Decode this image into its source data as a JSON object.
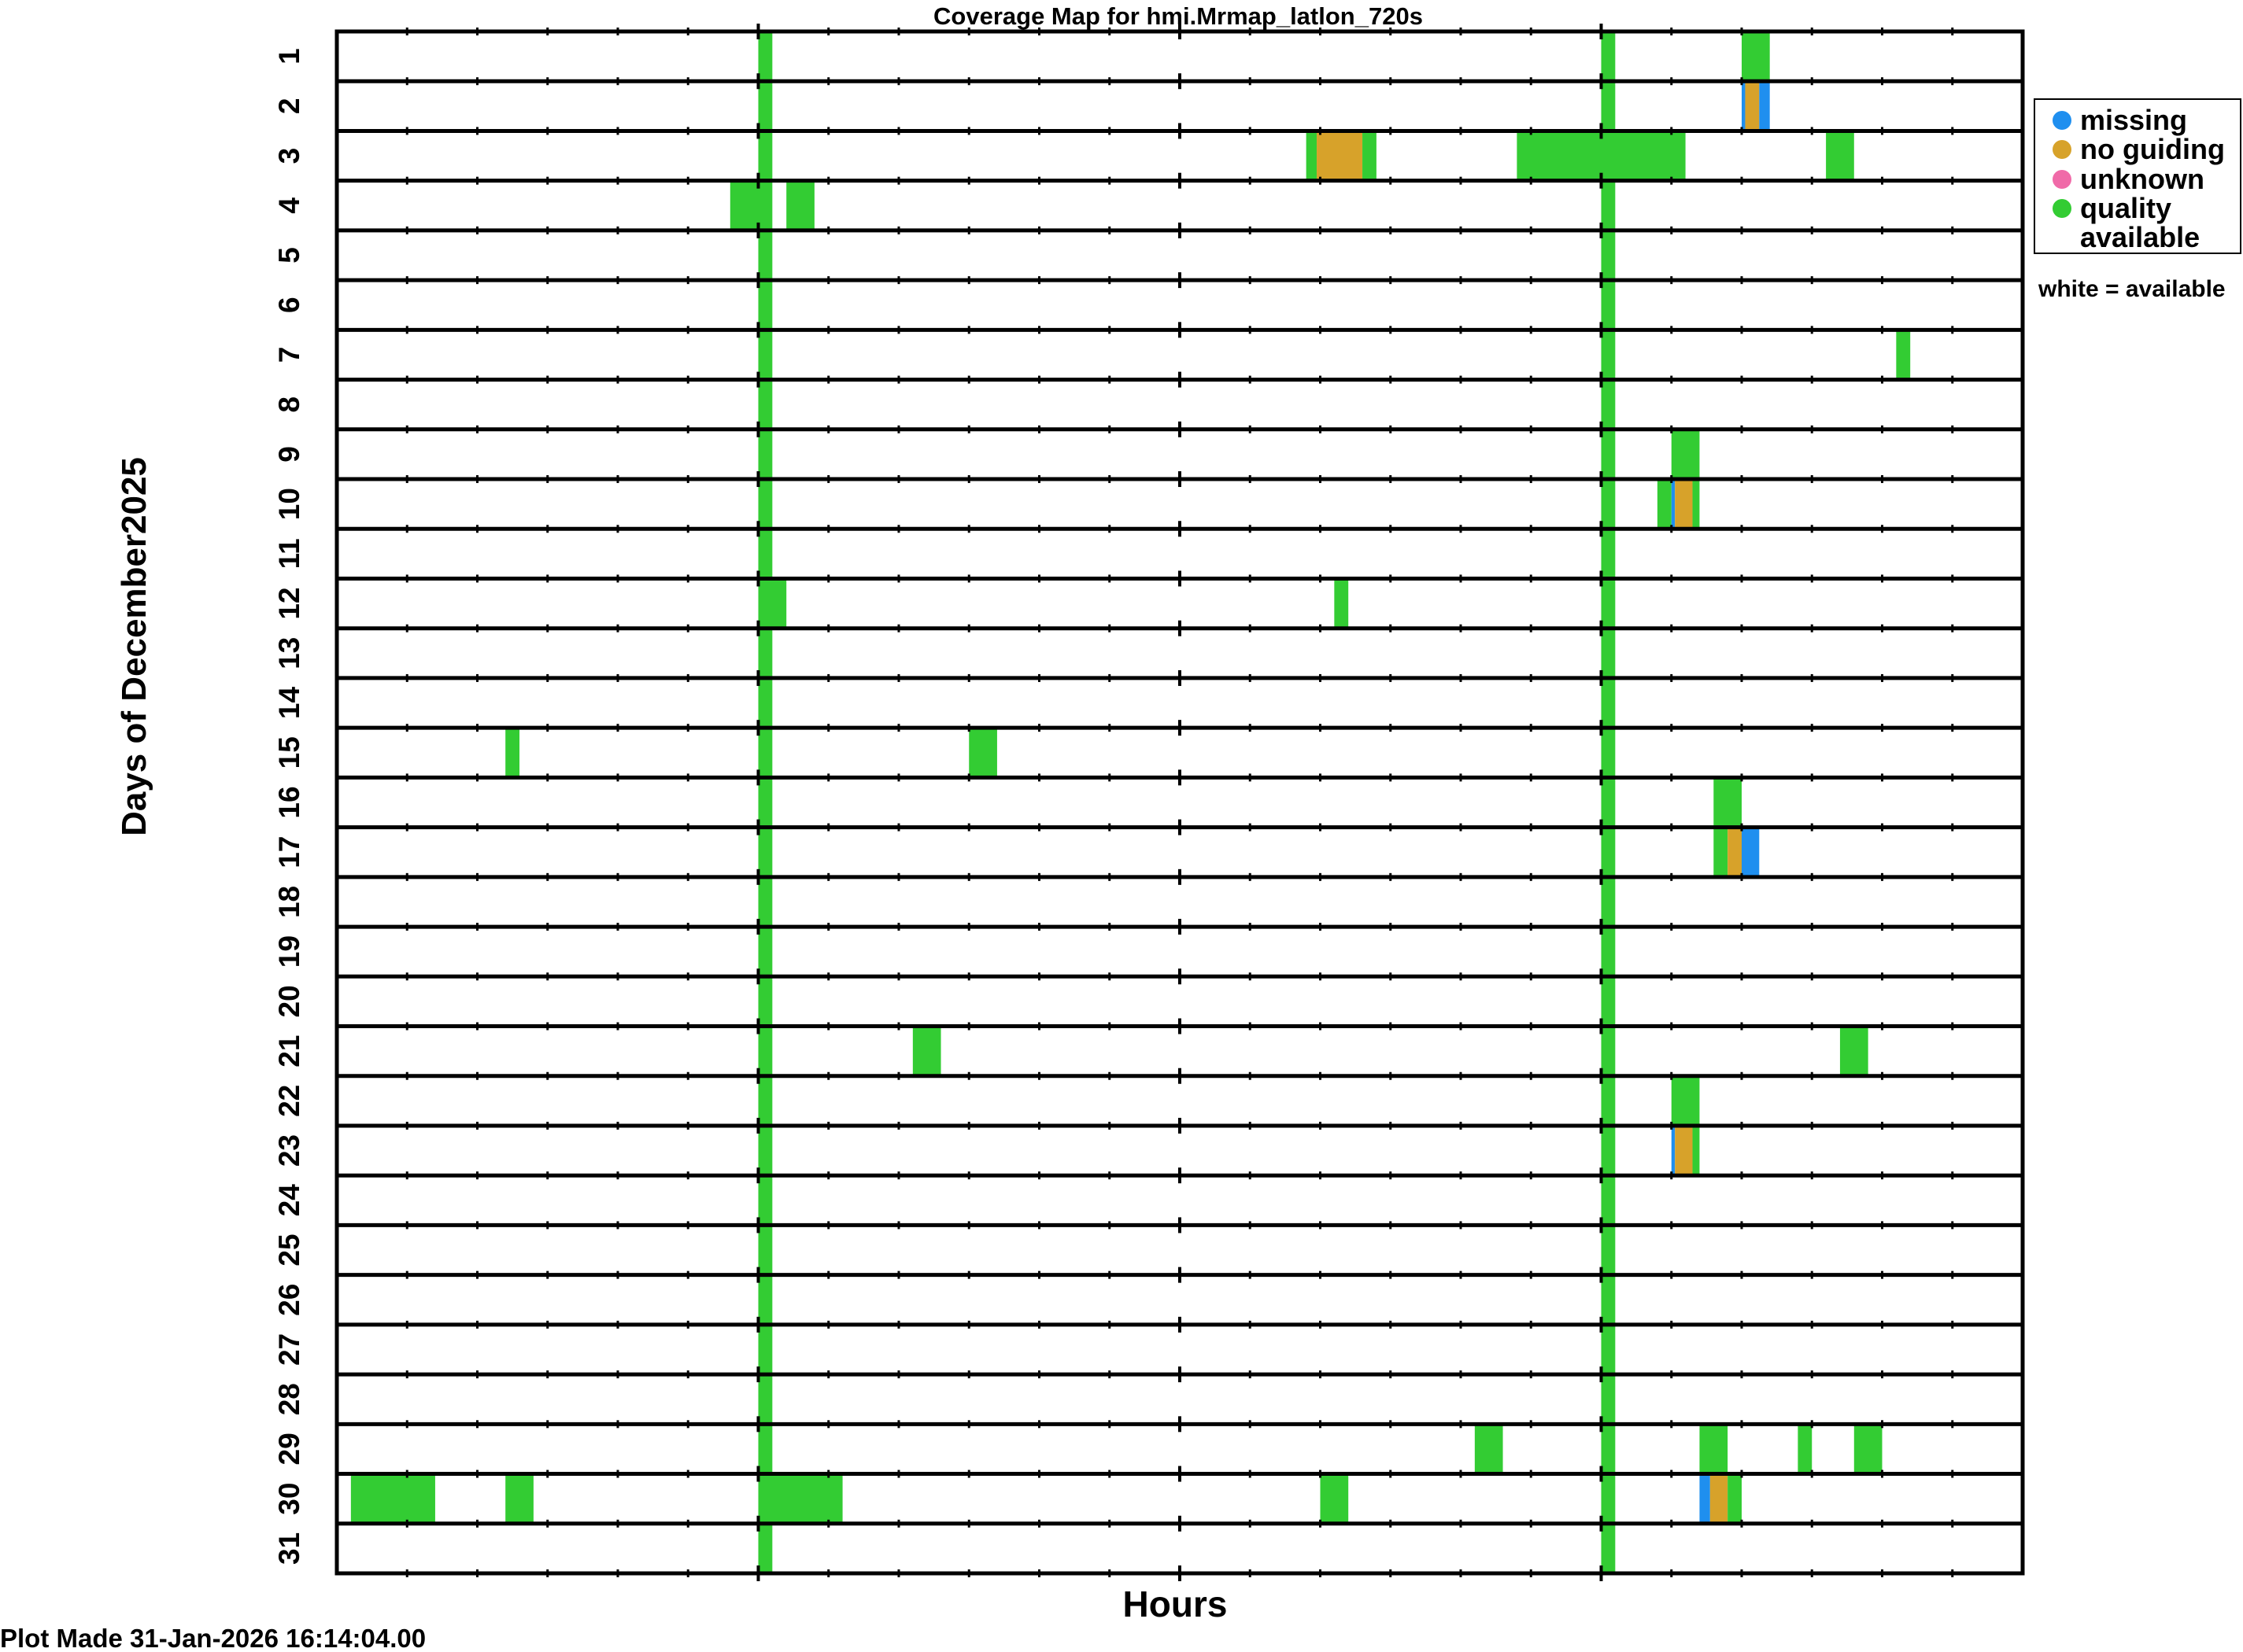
{
  "chart_data": {
    "type": "heatmap",
    "title": "Coverage Map for hmi.Mrmap_latlon_720s",
    "xlabel": "Hours",
    "ylabel": "Days of December2025",
    "footer": "Plot Made 31-Jan-2026 16:14:04.00",
    "xlim": [
      0,
      24
    ],
    "days": [
      1,
      2,
      3,
      4,
      5,
      6,
      7,
      8,
      9,
      10,
      11,
      12,
      13,
      14,
      15,
      16,
      17,
      18,
      19,
      20,
      21,
      22,
      23,
      24,
      25,
      26,
      27,
      28,
      29,
      30,
      31
    ],
    "colors": {
      "missing": "#1f8fef",
      "no_guiding": "#d7a22a",
      "unknown": "#f06aa8",
      "quality": "#33cc33"
    },
    "legend": {
      "placement": "right",
      "items": [
        {
          "key": "missing",
          "label": "missing"
        },
        {
          "key": "no_guiding",
          "label": "no guiding"
        },
        {
          "key": "unknown",
          "label": "unknown"
        },
        {
          "key": "quality",
          "label": "quality",
          "label2": "available"
        }
      ],
      "note": "white = available"
    },
    "status_blocks": [
      {
        "day": 1,
        "start": 6.0,
        "end": 6.2,
        "status": "quality"
      },
      {
        "day": 1,
        "start": 18.0,
        "end": 18.2,
        "status": "quality"
      },
      {
        "day": 1,
        "start": 20.0,
        "end": 20.4,
        "status": "quality"
      },
      {
        "day": 2,
        "start": 6.0,
        "end": 6.2,
        "status": "quality"
      },
      {
        "day": 2,
        "start": 18.0,
        "end": 18.2,
        "status": "quality"
      },
      {
        "day": 2,
        "start": 20.0,
        "end": 20.05,
        "status": "missing"
      },
      {
        "day": 2,
        "start": 20.05,
        "end": 20.25,
        "status": "no_guiding"
      },
      {
        "day": 2,
        "start": 20.25,
        "end": 20.4,
        "status": "missing"
      },
      {
        "day": 3,
        "start": 6.0,
        "end": 6.2,
        "status": "quality"
      },
      {
        "day": 3,
        "start": 13.8,
        "end": 13.95,
        "status": "quality"
      },
      {
        "day": 3,
        "start": 13.95,
        "end": 14.6,
        "status": "no_guiding"
      },
      {
        "day": 3,
        "start": 14.6,
        "end": 14.8,
        "status": "quality"
      },
      {
        "day": 3,
        "start": 16.8,
        "end": 19.2,
        "status": "quality"
      },
      {
        "day": 3,
        "start": 21.2,
        "end": 21.6,
        "status": "quality"
      },
      {
        "day": 4,
        "start": 5.6,
        "end": 6.2,
        "status": "quality"
      },
      {
        "day": 4,
        "start": 6.4,
        "end": 6.8,
        "status": "quality"
      },
      {
        "day": 4,
        "start": 18.0,
        "end": 18.2,
        "status": "quality"
      },
      {
        "day": 5,
        "start": 6.0,
        "end": 6.2,
        "status": "quality"
      },
      {
        "day": 5,
        "start": 18.0,
        "end": 18.2,
        "status": "quality"
      },
      {
        "day": 6,
        "start": 6.0,
        "end": 6.2,
        "status": "quality"
      },
      {
        "day": 6,
        "start": 18.0,
        "end": 18.2,
        "status": "quality"
      },
      {
        "day": 7,
        "start": 6.0,
        "end": 6.2,
        "status": "quality"
      },
      {
        "day": 7,
        "start": 18.0,
        "end": 18.2,
        "status": "quality"
      },
      {
        "day": 7,
        "start": 22.2,
        "end": 22.4,
        "status": "quality"
      },
      {
        "day": 8,
        "start": 6.0,
        "end": 6.2,
        "status": "quality"
      },
      {
        "day": 8,
        "start": 18.0,
        "end": 18.2,
        "status": "quality"
      },
      {
        "day": 9,
        "start": 6.0,
        "end": 6.2,
        "status": "quality"
      },
      {
        "day": 9,
        "start": 18.0,
        "end": 18.2,
        "status": "quality"
      },
      {
        "day": 9,
        "start": 19.0,
        "end": 19.4,
        "status": "quality"
      },
      {
        "day": 10,
        "start": 6.0,
        "end": 6.2,
        "status": "quality"
      },
      {
        "day": 10,
        "start": 18.0,
        "end": 18.2,
        "status": "quality"
      },
      {
        "day": 10,
        "start": 18.8,
        "end": 19.0,
        "status": "quality"
      },
      {
        "day": 10,
        "start": 19.0,
        "end": 19.05,
        "status": "missing"
      },
      {
        "day": 10,
        "start": 19.05,
        "end": 19.3,
        "status": "no_guiding"
      },
      {
        "day": 10,
        "start": 19.3,
        "end": 19.4,
        "status": "quality"
      },
      {
        "day": 11,
        "start": 6.0,
        "end": 6.2,
        "status": "quality"
      },
      {
        "day": 11,
        "start": 18.0,
        "end": 18.2,
        "status": "quality"
      },
      {
        "day": 12,
        "start": 6.0,
        "end": 6.4,
        "status": "quality"
      },
      {
        "day": 12,
        "start": 14.2,
        "end": 14.4,
        "status": "quality"
      },
      {
        "day": 12,
        "start": 18.0,
        "end": 18.2,
        "status": "quality"
      },
      {
        "day": 13,
        "start": 6.0,
        "end": 6.2,
        "status": "quality"
      },
      {
        "day": 13,
        "start": 18.0,
        "end": 18.2,
        "status": "quality"
      },
      {
        "day": 14,
        "start": 6.0,
        "end": 6.2,
        "status": "quality"
      },
      {
        "day": 14,
        "start": 18.0,
        "end": 18.2,
        "status": "quality"
      },
      {
        "day": 15,
        "start": 2.4,
        "end": 2.6,
        "status": "quality"
      },
      {
        "day": 15,
        "start": 6.0,
        "end": 6.2,
        "status": "quality"
      },
      {
        "day": 15,
        "start": 9.0,
        "end": 9.4,
        "status": "quality"
      },
      {
        "day": 15,
        "start": 18.0,
        "end": 18.2,
        "status": "quality"
      },
      {
        "day": 16,
        "start": 6.0,
        "end": 6.2,
        "status": "quality"
      },
      {
        "day": 16,
        "start": 18.0,
        "end": 18.2,
        "status": "quality"
      },
      {
        "day": 16,
        "start": 19.6,
        "end": 20.0,
        "status": "quality"
      },
      {
        "day": 17,
        "start": 6.0,
        "end": 6.2,
        "status": "quality"
      },
      {
        "day": 17,
        "start": 18.0,
        "end": 18.2,
        "status": "quality"
      },
      {
        "day": 17,
        "start": 19.6,
        "end": 19.8,
        "status": "quality"
      },
      {
        "day": 17,
        "start": 19.8,
        "end": 20.0,
        "status": "no_guiding"
      },
      {
        "day": 17,
        "start": 20.0,
        "end": 20.25,
        "status": "missing"
      },
      {
        "day": 18,
        "start": 6.0,
        "end": 6.2,
        "status": "quality"
      },
      {
        "day": 18,
        "start": 18.0,
        "end": 18.2,
        "status": "quality"
      },
      {
        "day": 19,
        "start": 6.0,
        "end": 6.2,
        "status": "quality"
      },
      {
        "day": 19,
        "start": 18.0,
        "end": 18.2,
        "status": "quality"
      },
      {
        "day": 20,
        "start": 6.0,
        "end": 6.2,
        "status": "quality"
      },
      {
        "day": 20,
        "start": 18.0,
        "end": 18.2,
        "status": "quality"
      },
      {
        "day": 21,
        "start": 6.0,
        "end": 6.2,
        "status": "quality"
      },
      {
        "day": 21,
        "start": 8.2,
        "end": 8.6,
        "status": "quality"
      },
      {
        "day": 21,
        "start": 18.0,
        "end": 18.2,
        "status": "quality"
      },
      {
        "day": 21,
        "start": 21.4,
        "end": 21.8,
        "status": "quality"
      },
      {
        "day": 22,
        "start": 6.0,
        "end": 6.2,
        "status": "quality"
      },
      {
        "day": 22,
        "start": 18.0,
        "end": 18.2,
        "status": "quality"
      },
      {
        "day": 22,
        "start": 19.0,
        "end": 19.4,
        "status": "quality"
      },
      {
        "day": 23,
        "start": 6.0,
        "end": 6.2,
        "status": "quality"
      },
      {
        "day": 23,
        "start": 18.0,
        "end": 18.2,
        "status": "quality"
      },
      {
        "day": 23,
        "start": 19.0,
        "end": 19.05,
        "status": "missing"
      },
      {
        "day": 23,
        "start": 19.05,
        "end": 19.3,
        "status": "no_guiding"
      },
      {
        "day": 23,
        "start": 19.3,
        "end": 19.4,
        "status": "quality"
      },
      {
        "day": 24,
        "start": 6.0,
        "end": 6.2,
        "status": "quality"
      },
      {
        "day": 24,
        "start": 18.0,
        "end": 18.2,
        "status": "quality"
      },
      {
        "day": 25,
        "start": 6.0,
        "end": 6.2,
        "status": "quality"
      },
      {
        "day": 25,
        "start": 18.0,
        "end": 18.2,
        "status": "quality"
      },
      {
        "day": 26,
        "start": 6.0,
        "end": 6.2,
        "status": "quality"
      },
      {
        "day": 26,
        "start": 18.0,
        "end": 18.2,
        "status": "quality"
      },
      {
        "day": 27,
        "start": 6.0,
        "end": 6.2,
        "status": "quality"
      },
      {
        "day": 27,
        "start": 18.0,
        "end": 18.2,
        "status": "quality"
      },
      {
        "day": 28,
        "start": 6.0,
        "end": 6.2,
        "status": "quality"
      },
      {
        "day": 28,
        "start": 18.0,
        "end": 18.2,
        "status": "quality"
      },
      {
        "day": 29,
        "start": 6.0,
        "end": 6.2,
        "status": "quality"
      },
      {
        "day": 29,
        "start": 16.2,
        "end": 16.6,
        "status": "quality"
      },
      {
        "day": 29,
        "start": 18.0,
        "end": 18.2,
        "status": "quality"
      },
      {
        "day": 29,
        "start": 19.4,
        "end": 19.8,
        "status": "quality"
      },
      {
        "day": 29,
        "start": 20.8,
        "end": 21.0,
        "status": "quality"
      },
      {
        "day": 29,
        "start": 21.6,
        "end": 22.0,
        "status": "quality"
      },
      {
        "day": 30,
        "start": 0.2,
        "end": 1.4,
        "status": "quality"
      },
      {
        "day": 30,
        "start": 2.4,
        "end": 2.8,
        "status": "quality"
      },
      {
        "day": 30,
        "start": 6.0,
        "end": 7.2,
        "status": "quality"
      },
      {
        "day": 30,
        "start": 14.0,
        "end": 14.4,
        "status": "quality"
      },
      {
        "day": 30,
        "start": 18.0,
        "end": 18.2,
        "status": "quality"
      },
      {
        "day": 30,
        "start": 19.4,
        "end": 19.55,
        "status": "missing"
      },
      {
        "day": 30,
        "start": 19.55,
        "end": 19.8,
        "status": "no_guiding"
      },
      {
        "day": 30,
        "start": 19.8,
        "end": 20.0,
        "status": "quality"
      },
      {
        "day": 31,
        "start": 6.0,
        "end": 6.2,
        "status": "quality"
      },
      {
        "day": 31,
        "start": 18.0,
        "end": 18.2,
        "status": "quality"
      }
    ]
  }
}
